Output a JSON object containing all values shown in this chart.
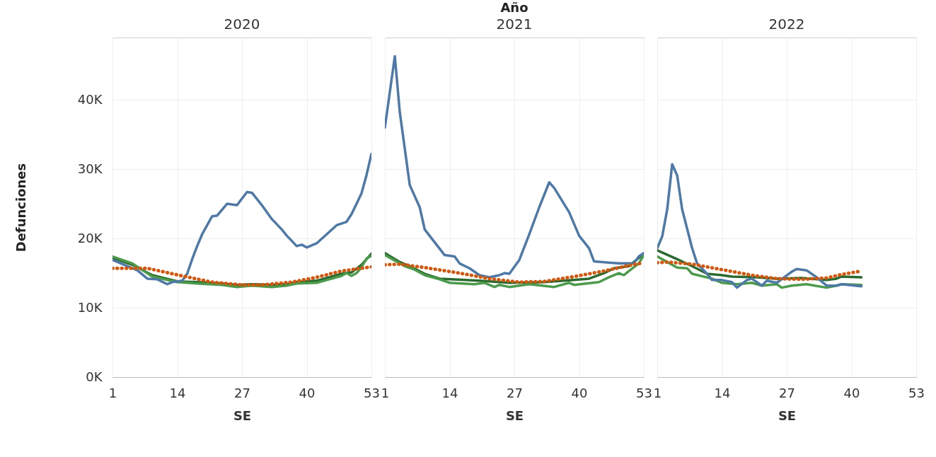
{
  "chart_data": [
    {
      "type": "line",
      "title": "2020",
      "xlabel": "SE",
      "ylabel": "Defunciones",
      "xlim": [
        1,
        53
      ],
      "xticks": [
        1,
        14,
        27,
        40,
        53
      ],
      "ylim": [
        0,
        49000
      ],
      "yticks": [
        {
          "value": 0,
          "label": "0K"
        },
        {
          "value": 10000,
          "label": "10K"
        },
        {
          "value": 20000,
          "label": "20K"
        },
        {
          "value": 30000,
          "label": "30K"
        },
        {
          "value": 40000,
          "label": "40K"
        }
      ],
      "grid": true,
      "series": [
        {
          "color": "#2b6a2f",
          "x": [
            1,
            5,
            9,
            14,
            18,
            23,
            26,
            29,
            33,
            36,
            38,
            42,
            44,
            47,
            49,
            51,
            53
          ],
          "values": [
            17200,
            16200,
            14700,
            13800,
            13700,
            13500,
            13300,
            13400,
            13300,
            13400,
            13700,
            13900,
            14300,
            14900,
            15100,
            16200,
            17800
          ]
        },
        {
          "color": "#4c9a4c",
          "x": [
            1,
            5,
            9,
            14,
            18,
            23,
            26,
            29,
            33,
            36,
            38,
            42,
            44,
            47,
            48,
            49,
            50,
            51,
            52,
            53
          ],
          "values": [
            17400,
            16400,
            14500,
            13700,
            13500,
            13300,
            13000,
            13200,
            13000,
            13200,
            13500,
            13600,
            14000,
            14600,
            15000,
            14600,
            15000,
            15800,
            17100,
            17500
          ]
        },
        {
          "color": "#4e79a7",
          "x": [
            1,
            6,
            8,
            10,
            12,
            13,
            15,
            16,
            17,
            18,
            19,
            21,
            22,
            24,
            26,
            28,
            29,
            31,
            33,
            35,
            36,
            38,
            39,
            40,
            42,
            44,
            46,
            48,
            49,
            51,
            52,
            53
          ],
          "values": [
            16900,
            15400,
            14200,
            14100,
            13400,
            13700,
            13900,
            14900,
            17000,
            18900,
            20600,
            23200,
            23300,
            25000,
            24800,
            26700,
            26600,
            24800,
            22800,
            21300,
            20400,
            18900,
            19100,
            18700,
            19300,
            20600,
            21900,
            22400,
            23500,
            26500,
            29100,
            32200
          ]
        },
        {
          "color": "#d4570f",
          "line_style": "dotted",
          "x": [
            1,
            8,
            15,
            21,
            27,
            31,
            37,
            42,
            47,
            53
          ],
          "values": [
            15700,
            15700,
            14600,
            13700,
            13300,
            13300,
            13700,
            14400,
            15300,
            15900
          ]
        }
      ]
    },
    {
      "type": "line",
      "title": "2021",
      "annotations": [
        "Año"
      ],
      "xlabel": "SE",
      "xlim": [
        1,
        53
      ],
      "xticks": [
        1,
        14,
        27,
        40,
        53
      ],
      "ylim": [
        0,
        49000
      ],
      "yticks": [
        {
          "value": 0,
          "label": null
        },
        {
          "value": 10000,
          "label": null
        },
        {
          "value": 20000,
          "label": null
        },
        {
          "value": 30000,
          "label": null
        },
        {
          "value": 40000,
          "label": null
        }
      ],
      "grid": true,
      "tick_labels": "x",
      "series": [
        {
          "color": "#2b6a2f",
          "x": [
            1,
            4,
            6,
            9,
            12,
            15,
            20,
            24,
            26,
            33,
            37,
            42,
            45,
            47,
            50,
            51,
            53
          ],
          "values": [
            17900,
            16600,
            16000,
            14900,
            14200,
            14100,
            13900,
            13700,
            13600,
            13700,
            13900,
            14200,
            15000,
            15700,
            16000,
            16600,
            17800
          ]
        },
        {
          "color": "#4c9a4c",
          "x": [
            1,
            5,
            7,
            9,
            12,
            14,
            19,
            21,
            23,
            24,
            26,
            30,
            35,
            38,
            39,
            44,
            46,
            48,
            49,
            50,
            52,
            53
          ],
          "values": [
            17600,
            16000,
            15500,
            14700,
            14100,
            13600,
            13400,
            13600,
            13000,
            13300,
            13000,
            13400,
            13000,
            13600,
            13300,
            13700,
            14400,
            15000,
            14700,
            15300,
            16400,
            17600
          ]
        },
        {
          "color": "#4e79a7",
          "x": [
            1,
            3,
            4,
            6,
            8,
            9,
            13,
            15,
            16,
            18,
            20,
            22,
            24,
            25,
            26,
            28,
            30,
            32,
            34,
            35,
            38,
            40,
            42,
            43,
            46,
            48,
            51,
            52,
            53
          ],
          "values": [
            36000,
            46300,
            38200,
            27700,
            24500,
            21300,
            17600,
            17400,
            16400,
            15700,
            14700,
            14400,
            14700,
            15000,
            14900,
            16900,
            20600,
            24500,
            28100,
            27300,
            23800,
            20400,
            18600,
            16700,
            16500,
            16400,
            16400,
            17400,
            17900
          ]
        },
        {
          "color": "#d4570f",
          "line_style": "dotted",
          "x": [
            1,
            4,
            9,
            16,
            22,
            28,
            33,
            39,
            45,
            50,
            53
          ],
          "values": [
            16200,
            16300,
            15800,
            15000,
            14200,
            13700,
            13800,
            14500,
            15300,
            16100,
            16500
          ]
        }
      ]
    },
    {
      "type": "line",
      "title": "2022",
      "xlabel": "SE",
      "xlim": [
        1,
        53
      ],
      "xticks": [
        1,
        14,
        27,
        40,
        53
      ],
      "ylim": [
        0,
        49000
      ],
      "yticks": [
        {
          "value": 0,
          "label": null
        },
        {
          "value": 10000,
          "label": null
        },
        {
          "value": 20000,
          "label": null
        },
        {
          "value": 30000,
          "label": null
        },
        {
          "value": 40000,
          "label": null
        }
      ],
      "grid": true,
      "tick_labels": "x",
      "series": [
        {
          "color": "#2b6a2f",
          "x": [
            1,
            5,
            8,
            11,
            14,
            16,
            21,
            25,
            30,
            35,
            37,
            38,
            42
          ],
          "values": [
            18300,
            17000,
            16000,
            14900,
            14700,
            14500,
            14400,
            14200,
            14300,
            14000,
            14200,
            14500,
            14400
          ]
        },
        {
          "color": "#4c9a4c",
          "x": [
            1,
            3,
            5,
            7,
            8,
            12,
            14,
            17,
            20,
            22,
            25,
            26,
            28,
            31,
            35,
            37,
            38,
            42
          ],
          "values": [
            17400,
            16600,
            15800,
            15700,
            14900,
            14200,
            13600,
            13400,
            13600,
            13200,
            13400,
            12900,
            13200,
            13400,
            12900,
            13200,
            13400,
            13300
          ]
        },
        {
          "color": "#4e79a7",
          "x": [
            1,
            2,
            3,
            4,
            5,
            6,
            8,
            9,
            11,
            12,
            14,
            16,
            17,
            19,
            20,
            22,
            23,
            25,
            28,
            29,
            31,
            33,
            35,
            37,
            38,
            42
          ],
          "values": [
            18600,
            20300,
            24200,
            30700,
            29100,
            24200,
            18600,
            16400,
            14900,
            14000,
            14000,
            13700,
            12900,
            14000,
            14200,
            13200,
            13900,
            13600,
            15200,
            15600,
            15400,
            14400,
            13200,
            13200,
            13400,
            13100
          ]
        },
        {
          "color": "#d4570f",
          "line_style": "dotted",
          "x": [
            1,
            3,
            8,
            14,
            20,
            25,
            30,
            35,
            38,
            42
          ],
          "values": [
            16500,
            16600,
            16300,
            15500,
            14700,
            14200,
            14100,
            14300,
            14800,
            15300
          ]
        }
      ]
    }
  ]
}
